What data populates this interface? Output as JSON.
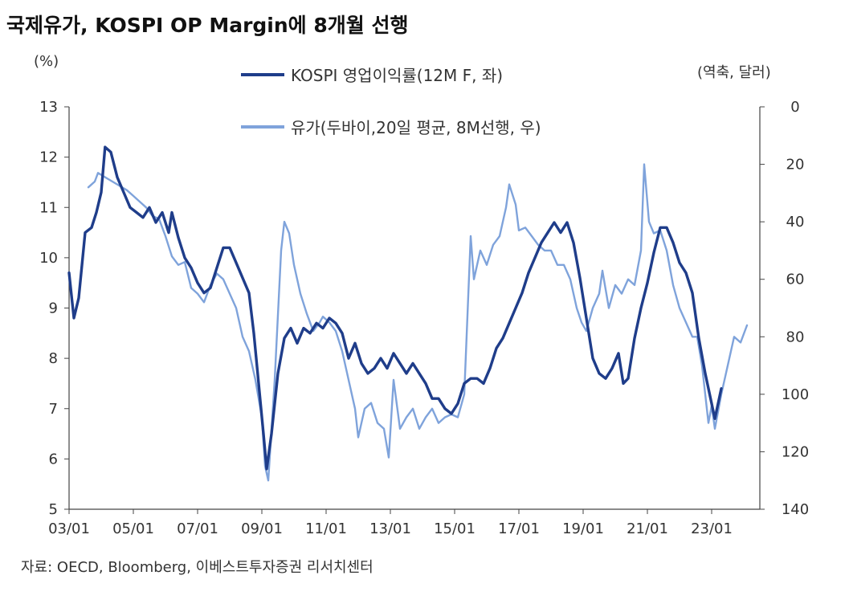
{
  "title": "국제유가, KOSPI OP Margin에 8개월 선행",
  "source": "자료: OECD, Bloomberg, 이베스트투자증권 리서치센터",
  "colors": {
    "series1": "#1f3d8a",
    "series2": "#7fa3db",
    "axis": "#444444"
  },
  "chart_data": {
    "type": "line",
    "title": "국제유가, KOSPI OP Margin에 8개월 선행",
    "left_axis": {
      "label": "(%)",
      "min": 5,
      "max": 13,
      "ticks": [
        "5",
        "6",
        "7",
        "8",
        "9",
        "10",
        "11",
        "12",
        "13"
      ]
    },
    "right_axis": {
      "label": "(역축, 달러)",
      "min": 0,
      "max": 140,
      "inverted": true,
      "ticks": [
        "0",
        "20",
        "40",
        "60",
        "80",
        "100",
        "120",
        "140"
      ]
    },
    "x_axis": {
      "min": 2003.0,
      "max": 2024.5,
      "ticks": [
        {
          "label": "03/01",
          "x": 2003.0
        },
        {
          "label": "05/01",
          "x": 2005.0
        },
        {
          "label": "07/01",
          "x": 2007.0
        },
        {
          "label": "09/01",
          "x": 2009.0
        },
        {
          "label": "11/01",
          "x": 2011.0
        },
        {
          "label": "13/01",
          "x": 2013.0
        },
        {
          "label": "15/01",
          "x": 2015.0
        },
        {
          "label": "17/01",
          "x": 2017.0
        },
        {
          "label": "19/01",
          "x": 2019.0
        },
        {
          "label": "21/01",
          "x": 2021.0
        },
        {
          "label": "23/01",
          "x": 2023.0
        }
      ]
    },
    "legend": [
      "KOSPI 영업이익률(12M F, 좌)",
      "유가(두바이,20일 평균, 8M선행, 우)"
    ],
    "series": [
      {
        "name": "KOSPI 영업이익률(12M F, 좌)",
        "axis": "left",
        "points": [
          [
            2003.0,
            9.7
          ],
          [
            2003.15,
            8.8
          ],
          [
            2003.3,
            9.2
          ],
          [
            2003.5,
            10.5
          ],
          [
            2003.7,
            10.6
          ],
          [
            2003.85,
            10.9
          ],
          [
            2004.0,
            11.3
          ],
          [
            2004.12,
            12.2
          ],
          [
            2004.3,
            12.1
          ],
          [
            2004.5,
            11.6
          ],
          [
            2004.7,
            11.3
          ],
          [
            2004.9,
            11.0
          ],
          [
            2005.1,
            10.9
          ],
          [
            2005.3,
            10.8
          ],
          [
            2005.5,
            11.0
          ],
          [
            2005.7,
            10.7
          ],
          [
            2005.9,
            10.9
          ],
          [
            2006.1,
            10.5
          ],
          [
            2006.2,
            10.9
          ],
          [
            2006.4,
            10.4
          ],
          [
            2006.6,
            10.0
          ],
          [
            2006.8,
            9.8
          ],
          [
            2007.0,
            9.5
          ],
          [
            2007.2,
            9.3
          ],
          [
            2007.4,
            9.4
          ],
          [
            2007.6,
            9.8
          ],
          [
            2007.8,
            10.2
          ],
          [
            2008.0,
            10.2
          ],
          [
            2008.2,
            9.9
          ],
          [
            2008.4,
            9.6
          ],
          [
            2008.6,
            9.3
          ],
          [
            2008.75,
            8.5
          ],
          [
            2008.9,
            7.5
          ],
          [
            2009.05,
            6.5
          ],
          [
            2009.15,
            5.8
          ],
          [
            2009.3,
            6.5
          ],
          [
            2009.5,
            7.7
          ],
          [
            2009.7,
            8.4
          ],
          [
            2009.9,
            8.6
          ],
          [
            2010.1,
            8.3
          ],
          [
            2010.3,
            8.6
          ],
          [
            2010.5,
            8.5
          ],
          [
            2010.7,
            8.7
          ],
          [
            2010.9,
            8.6
          ],
          [
            2011.1,
            8.8
          ],
          [
            2011.3,
            8.7
          ],
          [
            2011.5,
            8.5
          ],
          [
            2011.7,
            8.0
          ],
          [
            2011.9,
            8.3
          ],
          [
            2012.1,
            7.9
          ],
          [
            2012.3,
            7.7
          ],
          [
            2012.5,
            7.8
          ],
          [
            2012.7,
            8.0
          ],
          [
            2012.9,
            7.8
          ],
          [
            2013.1,
            8.1
          ],
          [
            2013.3,
            7.9
          ],
          [
            2013.5,
            7.7
          ],
          [
            2013.7,
            7.9
          ],
          [
            2013.9,
            7.7
          ],
          [
            2014.1,
            7.5
          ],
          [
            2014.3,
            7.2
          ],
          [
            2014.5,
            7.2
          ],
          [
            2014.7,
            7.0
          ],
          [
            2014.9,
            6.9
          ],
          [
            2015.1,
            7.1
          ],
          [
            2015.3,
            7.5
          ],
          [
            2015.5,
            7.6
          ],
          [
            2015.7,
            7.6
          ],
          [
            2015.9,
            7.5
          ],
          [
            2016.1,
            7.8
          ],
          [
            2016.3,
            8.2
          ],
          [
            2016.5,
            8.4
          ],
          [
            2016.7,
            8.7
          ],
          [
            2016.9,
            9.0
          ],
          [
            2017.1,
            9.3
          ],
          [
            2017.3,
            9.7
          ],
          [
            2017.5,
            10.0
          ],
          [
            2017.7,
            10.3
          ],
          [
            2017.9,
            10.5
          ],
          [
            2018.1,
            10.7
          ],
          [
            2018.3,
            10.5
          ],
          [
            2018.5,
            10.7
          ],
          [
            2018.7,
            10.3
          ],
          [
            2018.9,
            9.6
          ],
          [
            2019.1,
            8.8
          ],
          [
            2019.3,
            8.0
          ],
          [
            2019.5,
            7.7
          ],
          [
            2019.7,
            7.6
          ],
          [
            2019.9,
            7.8
          ],
          [
            2020.1,
            8.1
          ],
          [
            2020.25,
            7.5
          ],
          [
            2020.4,
            7.6
          ],
          [
            2020.6,
            8.4
          ],
          [
            2020.8,
            9.0
          ],
          [
            2021.0,
            9.5
          ],
          [
            2021.2,
            10.1
          ],
          [
            2021.4,
            10.6
          ],
          [
            2021.6,
            10.6
          ],
          [
            2021.8,
            10.3
          ],
          [
            2022.0,
            9.9
          ],
          [
            2022.2,
            9.7
          ],
          [
            2022.4,
            9.3
          ],
          [
            2022.6,
            8.4
          ],
          [
            2022.8,
            7.7
          ],
          [
            2023.0,
            7.1
          ],
          [
            2023.1,
            6.8
          ],
          [
            2023.3,
            7.4
          ]
        ]
      },
      {
        "name": "유가(두바이,20일 평균, 8M선행, 우)",
        "axis": "right",
        "points": [
          [
            2003.6,
            28
          ],
          [
            2003.8,
            26
          ],
          [
            2003.9,
            23
          ],
          [
            2004.2,
            25
          ],
          [
            2004.5,
            27
          ],
          [
            2004.8,
            29
          ],
          [
            2005.0,
            31
          ],
          [
            2005.2,
            33
          ],
          [
            2005.4,
            35
          ],
          [
            2005.6,
            38
          ],
          [
            2005.8,
            39
          ],
          [
            2006.0,
            45
          ],
          [
            2006.2,
            52
          ],
          [
            2006.4,
            55
          ],
          [
            2006.6,
            54
          ],
          [
            2006.8,
            63
          ],
          [
            2007.0,
            65
          ],
          [
            2007.2,
            68
          ],
          [
            2007.4,
            62
          ],
          [
            2007.6,
            58
          ],
          [
            2007.8,
            60
          ],
          [
            2008.0,
            65
          ],
          [
            2008.2,
            70
          ],
          [
            2008.4,
            80
          ],
          [
            2008.6,
            85
          ],
          [
            2008.8,
            95
          ],
          [
            2009.0,
            108
          ],
          [
            2009.1,
            125
          ],
          [
            2009.2,
            130
          ],
          [
            2009.4,
            95
          ],
          [
            2009.6,
            50
          ],
          [
            2009.7,
            40
          ],
          [
            2009.85,
            44
          ],
          [
            2010.0,
            55
          ],
          [
            2010.2,
            65
          ],
          [
            2010.4,
            72
          ],
          [
            2010.6,
            78
          ],
          [
            2010.8,
            75
          ],
          [
            2010.9,
            73
          ],
          [
            2011.1,
            75
          ],
          [
            2011.3,
            78
          ],
          [
            2011.5,
            85
          ],
          [
            2011.7,
            95
          ],
          [
            2011.9,
            105
          ],
          [
            2012.0,
            115
          ],
          [
            2012.2,
            105
          ],
          [
            2012.4,
            103
          ],
          [
            2012.6,
            110
          ],
          [
            2012.8,
            112
          ],
          [
            2012.95,
            122
          ],
          [
            2013.1,
            95
          ],
          [
            2013.3,
            112
          ],
          [
            2013.5,
            108
          ],
          [
            2013.7,
            105
          ],
          [
            2013.9,
            112
          ],
          [
            2014.1,
            108
          ],
          [
            2014.3,
            105
          ],
          [
            2014.5,
            110
          ],
          [
            2014.7,
            108
          ],
          [
            2014.9,
            107
          ],
          [
            2015.1,
            108
          ],
          [
            2015.3,
            100
          ],
          [
            2015.5,
            45
          ],
          [
            2015.6,
            60
          ],
          [
            2015.8,
            50
          ],
          [
            2016.0,
            55
          ],
          [
            2016.2,
            48
          ],
          [
            2016.4,
            45
          ],
          [
            2016.6,
            35
          ],
          [
            2016.7,
            27
          ],
          [
            2016.9,
            34
          ],
          [
            2017.0,
            43
          ],
          [
            2017.2,
            42
          ],
          [
            2017.4,
            45
          ],
          [
            2017.6,
            48
          ],
          [
            2017.8,
            50
          ],
          [
            2018.0,
            50
          ],
          [
            2018.2,
            55
          ],
          [
            2018.4,
            55
          ],
          [
            2018.6,
            60
          ],
          [
            2018.8,
            70
          ],
          [
            2018.95,
            75
          ],
          [
            2019.1,
            78
          ],
          [
            2019.3,
            70
          ],
          [
            2019.5,
            65
          ],
          [
            2019.6,
            57
          ],
          [
            2019.8,
            70
          ],
          [
            2020.0,
            62
          ],
          [
            2020.2,
            65
          ],
          [
            2020.4,
            60
          ],
          [
            2020.6,
            62
          ],
          [
            2020.8,
            50
          ],
          [
            2020.9,
            20
          ],
          [
            2021.05,
            40
          ],
          [
            2021.2,
            44
          ],
          [
            2021.4,
            43
          ],
          [
            2021.6,
            50
          ],
          [
            2021.8,
            62
          ],
          [
            2022.0,
            70
          ],
          [
            2022.2,
            75
          ],
          [
            2022.4,
            80
          ],
          [
            2022.55,
            80
          ],
          [
            2022.7,
            90
          ],
          [
            2022.8,
            100
          ],
          [
            2022.9,
            110
          ],
          [
            2023.0,
            104
          ],
          [
            2023.1,
            112
          ],
          [
            2023.3,
            100
          ],
          [
            2023.5,
            90
          ],
          [
            2023.7,
            80
          ],
          [
            2023.9,
            82
          ],
          [
            2024.1,
            76
          ]
        ]
      }
    ]
  }
}
